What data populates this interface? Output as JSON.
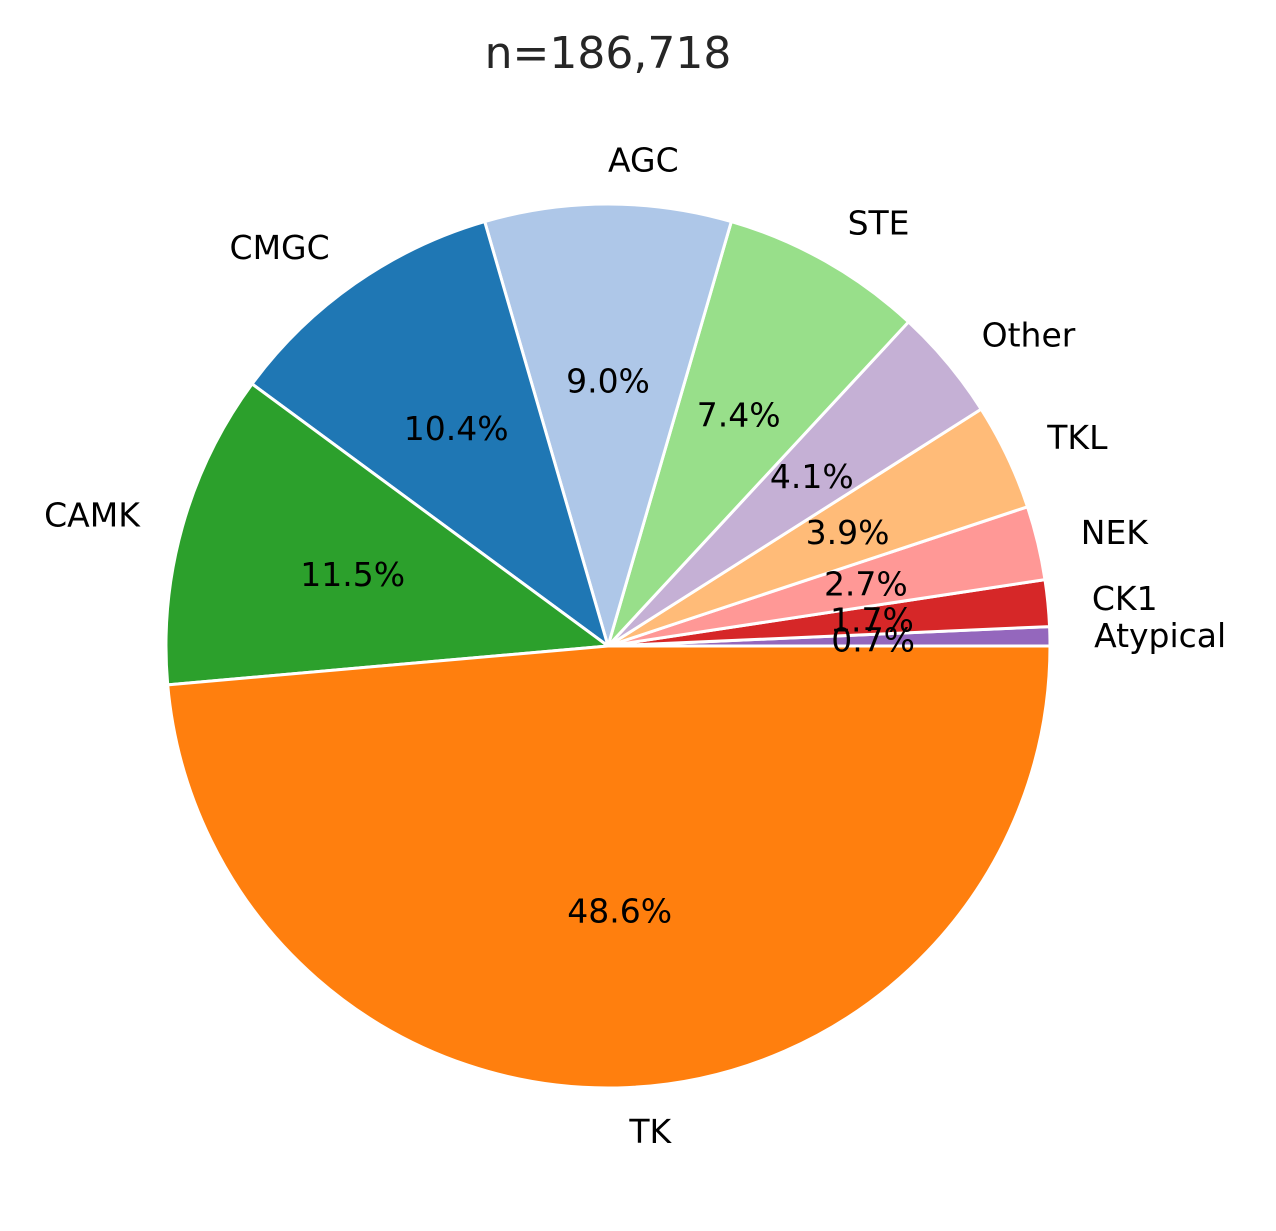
{
  "chart_data": {
    "type": "pie",
    "title": "n=186,718",
    "start_angle_deg": 0,
    "direction": "counterclockwise",
    "legend": "none",
    "slices": [
      {
        "label": "Atypical",
        "value": 0.7,
        "pct_label": "0.7%",
        "color": "#9467bd"
      },
      {
        "label": "CK1",
        "value": 1.7,
        "pct_label": "1.7%",
        "color": "#d62728"
      },
      {
        "label": "NEK",
        "value": 2.7,
        "pct_label": "2.7%",
        "color": "#ff9896"
      },
      {
        "label": "TKL",
        "value": 3.9,
        "pct_label": "3.9%",
        "color": "#ffbb78"
      },
      {
        "label": "Other",
        "value": 4.1,
        "pct_label": "4.1%",
        "color": "#c5b0d5"
      },
      {
        "label": "STE",
        "value": 7.4,
        "pct_label": "7.4%",
        "color": "#98df8a"
      },
      {
        "label": "AGC",
        "value": 9.0,
        "pct_label": "9.0%",
        "color": "#aec7e8"
      },
      {
        "label": "CMGC",
        "value": 10.4,
        "pct_label": "10.4%",
        "color": "#1f77b4"
      },
      {
        "label": "CAMK",
        "value": 11.5,
        "pct_label": "11.5%",
        "color": "#2ca02c"
      },
      {
        "label": "TK",
        "value": 48.6,
        "pct_label": "48.6%",
        "color": "#ff7f0e"
      }
    ]
  }
}
